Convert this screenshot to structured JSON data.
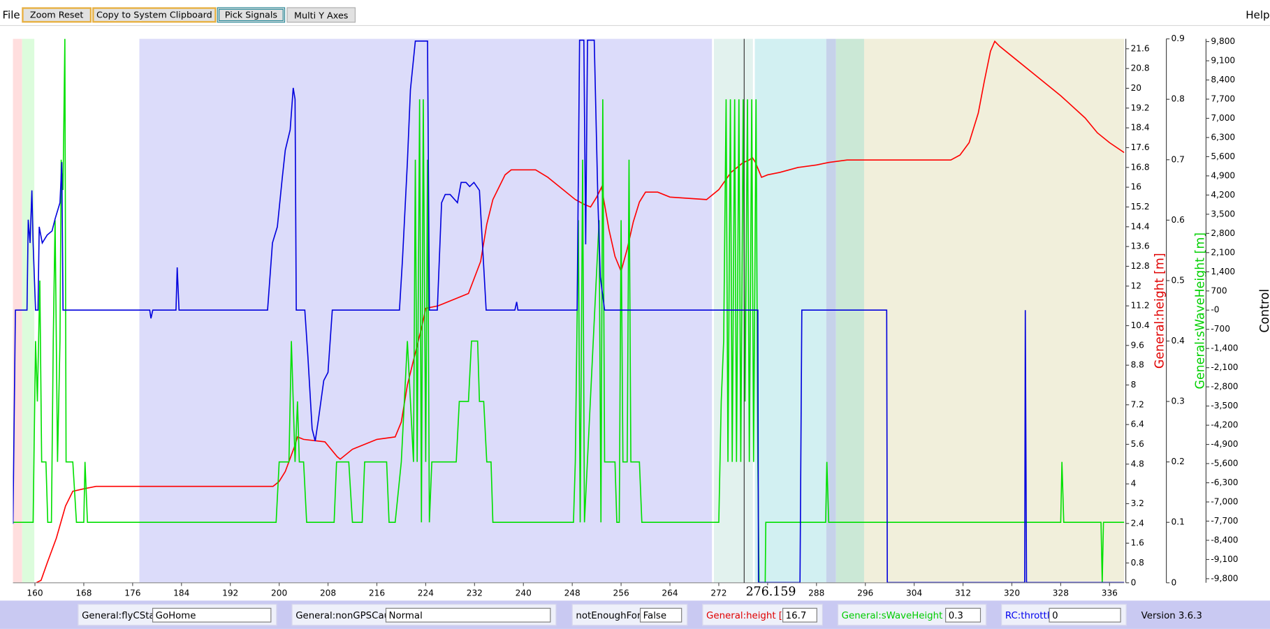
{
  "menu": {
    "file": "File",
    "help": "Help"
  },
  "toolbar": {
    "buttons": [
      "Zoom Reset",
      "Copy to System Clipboard",
      "Pick Signals",
      "Multi Y Axes"
    ]
  },
  "chart_data": {
    "type": "line",
    "xlim": [
      156.4,
      338.4
    ],
    "xticks": [
      160,
      168,
      176,
      184,
      192,
      200,
      208,
      216,
      224,
      232,
      240,
      248,
      256,
      264,
      272,
      280,
      288,
      296,
      304,
      312,
      320,
      328,
      336
    ],
    "ylim": [
      0,
      22
    ],
    "yticks": [
      0,
      0.8,
      1.6,
      2.4,
      3.2,
      4,
      4.8,
      5.6,
      6.4,
      7.2,
      8,
      8.8,
      9.6,
      10.4,
      11.2,
      12,
      12.8,
      13.6,
      14.4,
      15.2,
      16,
      16.8,
      17.6,
      18.4,
      19.2,
      20,
      20.8,
      21.6
    ],
    "y_label": "General:height [m]",
    "y_label_color": "#e00000",
    "y2lim": [
      0,
      0.9
    ],
    "y2ticks": [
      0,
      0.1,
      0.2,
      0.3,
      0.4,
      0.5,
      0.6,
      0.7,
      0.8,
      0.9
    ],
    "y2_label": "General:sWaveHeight [m]",
    "y2_label_color": "#00d000",
    "y3lim": [
      -9950,
      9900
    ],
    "y3ticks": [
      {
        "value": 9800,
        "label": "9,800"
      },
      {
        "value": 9100,
        "label": "9,100"
      },
      {
        "value": 8400,
        "label": "8,400"
      },
      {
        "value": 7700,
        "label": "7,700"
      },
      {
        "value": 7000,
        "label": "7,000"
      },
      {
        "value": 6300,
        "label": "6,300"
      },
      {
        "value": 5600,
        "label": "5,600"
      },
      {
        "value": 4900,
        "label": "4,900"
      },
      {
        "value": 4200,
        "label": "4,200"
      },
      {
        "value": 3500,
        "label": "3,500"
      },
      {
        "value": 2800,
        "label": "2,800"
      },
      {
        "value": 2100,
        "label": "2,100"
      },
      {
        "value": 1400,
        "label": "1,400"
      },
      700,
      {
        "value": 0,
        "label": "-0"
      },
      -700,
      {
        "value": -1400,
        "label": "-1,400"
      },
      {
        "value": -2100,
        "label": "-2,100"
      },
      {
        "value": -2800,
        "label": "-2,800"
      },
      {
        "value": -3500,
        "label": "-3,500"
      },
      {
        "value": -4200,
        "label": "-4,200"
      },
      {
        "value": -4900,
        "label": "-4,900"
      },
      {
        "value": -5600,
        "label": "-5,600"
      },
      {
        "value": -6300,
        "label": "-6,300"
      },
      {
        "value": -7000,
        "label": "-7,000"
      },
      {
        "value": -7700,
        "label": "-7,700"
      },
      {
        "value": -8400,
        "label": "-8,400"
      },
      {
        "value": -9100,
        "label": "-9,100"
      },
      {
        "value": -9800,
        "label": "-9,800"
      }
    ],
    "y3_label": "Control",
    "y3_label_color": "#000000",
    "bands": [
      {
        "x": [
          156.4,
          157.9
        ],
        "color": "#ffdede"
      },
      {
        "x": [
          157.9,
          159.9
        ],
        "color": "#dcfcdc"
      },
      {
        "x": [
          177.1,
          270.9
        ],
        "color": "#dcdcfa"
      },
      {
        "x": [
          270.9,
          271.2
        ],
        "color": "#ffffff"
      },
      {
        "x": [
          271.2,
          277.6
        ],
        "color": "#e2f2ee"
      },
      {
        "x": [
          277.6,
          277.9
        ],
        "color": "#ffffff"
      },
      {
        "x": [
          277.9,
          289.6
        ],
        "color": "#d2f0f2"
      },
      {
        "x": [
          289.6,
          291.2
        ],
        "color": "#c6d2ea"
      },
      {
        "x": [
          291.2,
          295.8
        ],
        "color": "#cbe8d6"
      },
      {
        "x": [
          295.8,
          338.4
        ],
        "color": "#f1efdb"
      }
    ],
    "cursor": 276.159,
    "series": [
      {
        "color": "#ff0000",
        "axis": "y",
        "x": [
          160.2,
          161,
          162,
          163.5,
          165,
          166.2,
          168,
          170,
          199,
          200,
          201,
          202.5,
          203,
          204,
          207.5,
          209.5,
          210,
          212,
          216,
          219,
          220,
          221,
          222.5,
          223.5,
          224,
          226,
          229,
          231,
          233,
          234,
          235,
          236,
          237,
          238,
          242,
          244,
          246,
          248.5,
          250,
          251,
          252,
          252.8,
          254,
          255,
          256,
          257,
          258,
          259,
          260,
          262,
          264,
          270,
          272,
          274,
          275,
          276,
          277,
          277.5,
          278,
          279,
          280,
          282,
          285,
          288,
          290,
          293,
          310,
          311.5,
          313,
          314.5,
          315.5,
          316.5,
          317.2,
          318,
          320,
          324,
          328,
          332,
          334,
          336,
          338.4
        ],
        "values": [
          0,
          0.1,
          0.8,
          1.8,
          3.1,
          3.7,
          3.8,
          3.9,
          3.9,
          4.1,
          4.5,
          5.5,
          5.9,
          5.8,
          5.7,
          5.1,
          5.0,
          5.4,
          5.8,
          5.9,
          6.5,
          8,
          9.5,
          10.5,
          11.1,
          11.2,
          11.5,
          11.7,
          13,
          14.5,
          15.5,
          16,
          16.5,
          16.7,
          16.7,
          16.4,
          16,
          15.5,
          15.3,
          15.2,
          15.6,
          16,
          14.3,
          13.2,
          12.6,
          13.5,
          14.6,
          15.4,
          15.8,
          15.8,
          15.6,
          15.5,
          15.9,
          16.6,
          16.8,
          17,
          17.1,
          17.2,
          17,
          16.4,
          16.5,
          16.6,
          16.8,
          16.9,
          17,
          17.1,
          17.1,
          17.3,
          17.8,
          19,
          20.3,
          21.5,
          21.9,
          21.7,
          21.3,
          20.5,
          19.7,
          18.8,
          18.2,
          17.8,
          17.4
        ]
      },
      {
        "color": "#00e000",
        "axis": "y2",
        "x": [
          156.4,
          159.7,
          160.1,
          160.4,
          160.8,
          161.1,
          161.8,
          162.1,
          162.7,
          163,
          163.3,
          163.7,
          164.1,
          164.3,
          164.6,
          164.9,
          165.1,
          166.2,
          166.8,
          168,
          168.2,
          168.6,
          199.5,
          200,
          201.6,
          202,
          202.6,
          203,
          203.3,
          204,
          204.5,
          209,
          209.4,
          211.4,
          212,
          213.6,
          214,
          217.6,
          218,
          219,
          220,
          221,
          222,
          222.3,
          222.6,
          223,
          223.3,
          223.6,
          224,
          224.3,
          224.6,
          225,
          229,
          229.5,
          231,
          231.5,
          232.5,
          232.8,
          233.5,
          234,
          234.7,
          235,
          248.2,
          248.5,
          249,
          249.3,
          249.7,
          250,
          252.4,
          252.7,
          253,
          253.3,
          255,
          255.3,
          255.7,
          256,
          256.3,
          257,
          257.3,
          257.6,
          259,
          259.4,
          272,
          272.4,
          272.8,
          273.2,
          273.5,
          273.9,
          274.2,
          274.6,
          274.9,
          275.3,
          275.6,
          276,
          276.3,
          276.7,
          277,
          277.4,
          277.7,
          278.1,
          278.4,
          278.6,
          279.6,
          279.7,
          289.5,
          289.7,
          290,
          328,
          328.2,
          328.5,
          334.6,
          334.8,
          335,
          338.4
        ],
        "values": [
          0.1,
          0.1,
          0.4,
          0.3,
          0.5,
          0.2,
          0.2,
          0.1,
          0.1,
          0.4,
          0.6,
          0.2,
          0.4,
          0.7,
          0.65,
          0.9,
          0.2,
          0.2,
          0.1,
          0.1,
          0.2,
          0.1,
          0.1,
          0.2,
          0.2,
          0.4,
          0.2,
          0.3,
          0.2,
          0.2,
          0.1,
          0.1,
          0.2,
          0.2,
          0.1,
          0.1,
          0.2,
          0.2,
          0.1,
          0.1,
          0.2,
          0.4,
          0.2,
          0.7,
          0.2,
          0.8,
          0.1,
          0.8,
          0.2,
          0.7,
          0.1,
          0.2,
          0.2,
          0.3,
          0.3,
          0.4,
          0.4,
          0.3,
          0.3,
          0.2,
          0.2,
          0.1,
          0.1,
          0.2,
          0.6,
          0.1,
          0.7,
          0.1,
          0.6,
          0.1,
          0.8,
          0.2,
          0.2,
          0.1,
          0.1,
          0.6,
          0.2,
          0.2,
          0.7,
          0.2,
          0.2,
          0.1,
          0.1,
          0.3,
          0.4,
          0.8,
          0.2,
          0.8,
          0.2,
          0.8,
          0.2,
          0.8,
          0.2,
          0.8,
          0.3,
          0.8,
          0.2,
          0.8,
          0.2,
          0.8,
          0.2,
          0,
          0,
          0.1,
          0.1,
          0.2,
          0.1,
          0.1,
          0.2,
          0.1,
          0.1,
          0,
          0.1,
          0.1
        ]
      },
      {
        "color": "#0000dd",
        "axis": "y3",
        "x": [
          156.4,
          156.8,
          158.7,
          158.9,
          159.2,
          159.5,
          159.7,
          160.1,
          160.5,
          160.7,
          161.2,
          162,
          162.8,
          163.3,
          164.1,
          164.4,
          164.6,
          178.8,
          179,
          179.3,
          183.1,
          183.3,
          183.6,
          198.1,
          198.9,
          199.7,
          200.5,
          201,
          201.8,
          202.3,
          202.6,
          202.8,
          204.2,
          204.7,
          205.4,
          205.9,
          206.4,
          207.3,
          208,
          208.7,
          219.7,
          220.2,
          221,
          221.5,
          222.3,
          224.3,
          224.6,
          225.9,
          226.6,
          227.2,
          228,
          229.2,
          229.8,
          230.6,
          231.2,
          231.9,
          232.8,
          233.9,
          238.6,
          238.9,
          239.1,
          248.8,
          249.2,
          249.9,
          250.2,
          250.5,
          251.6,
          252.2,
          252.6,
          253.3,
          278.4,
          278.5,
          285.3,
          285.6,
          299.5,
          299.6,
          322.1,
          322.2,
          322.4,
          338.4
        ],
        "values": [
          -7800,
          0,
          0,
          3300,
          2450,
          4370,
          2450,
          0,
          0,
          3040,
          2450,
          2740,
          2890,
          3330,
          3920,
          5400,
          0,
          0,
          -300,
          0,
          0,
          1560,
          0,
          0,
          2450,
          3040,
          4810,
          5840,
          6580,
          8110,
          7700,
          0,
          0,
          -1680,
          -4340,
          -4780,
          -4040,
          -2570,
          -2270,
          0,
          0,
          1860,
          5400,
          8050,
          9820,
          9820,
          0,
          0,
          3920,
          4220,
          4220,
          3920,
          4660,
          4660,
          4510,
          4660,
          4370,
          0,
          0,
          300,
          0,
          0,
          9850,
          9850,
          2400,
          9850,
          9850,
          4000,
          1200,
          0,
          0,
          -9940,
          -9940,
          0,
          0,
          -9940,
          -9940,
          0,
          -9940,
          -9940
        ]
      }
    ]
  },
  "status_bar": {
    "fields": [
      {
        "label": "General:flyCState",
        "value": "GoHome",
        "color": "#000000"
      },
      {
        "label": "General:nonGPSCause",
        "value": "Normal",
        "color": "#000000"
      },
      {
        "label": "notEnoughForce",
        "value": "False",
        "color": "#000000"
      },
      {
        "label": "General:height [m]",
        "value": 16.7,
        "color": "#e00000"
      },
      {
        "label": "General:sWaveHeight [m]",
        "value": 0.3,
        "color": "#00cc00"
      },
      {
        "label": "RC:throttle",
        "value": 0,
        "color": "#0000ee"
      }
    ],
    "version": "Version 3.6.3"
  }
}
